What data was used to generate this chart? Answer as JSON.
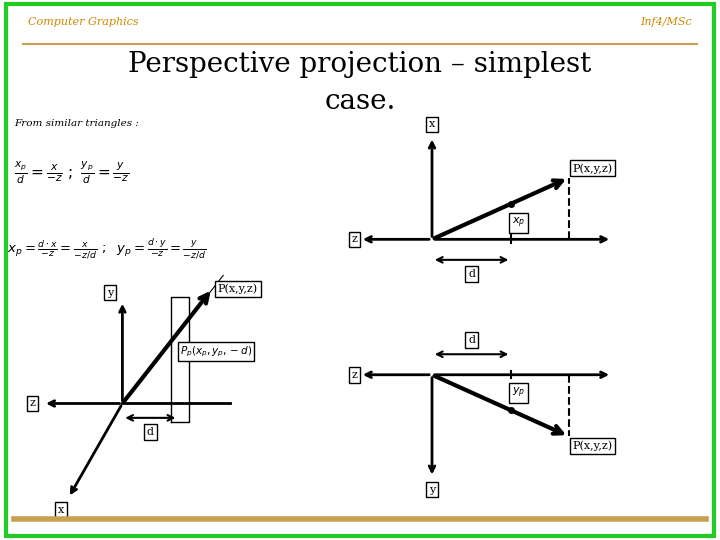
{
  "bg_color": "#ffffff",
  "border_color": "#22cc22",
  "header_line_color": "#c8a050",
  "header_left": "Computer Graphics",
  "header_right": "Inf4/MSc",
  "header_color": "#cc8800",
  "title_line1": "Perspective projection – simplest",
  "title_line2": "case.",
  "from_similar": "From similar triangles :",
  "bottom_line_color": "#c8a050"
}
